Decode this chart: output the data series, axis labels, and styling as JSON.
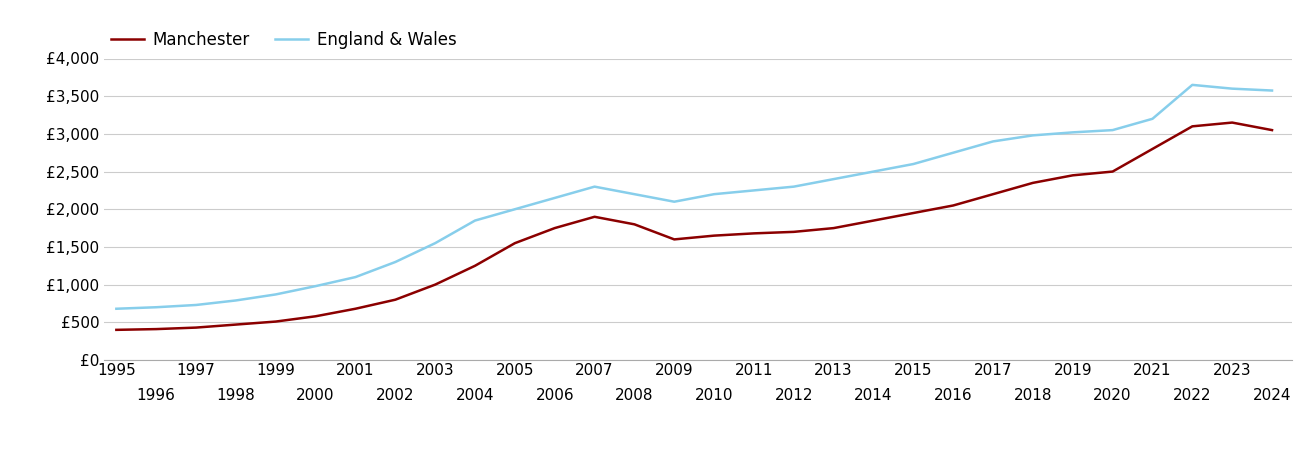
{
  "manchester": {
    "years": [
      1995,
      1996,
      1997,
      1998,
      1999,
      2000,
      2001,
      2002,
      2003,
      2004,
      2005,
      2006,
      2007,
      2008,
      2009,
      2010,
      2011,
      2012,
      2013,
      2014,
      2015,
      2016,
      2017,
      2018,
      2019,
      2020,
      2021,
      2022,
      2023,
      2024
    ],
    "values": [
      400,
      410,
      430,
      470,
      510,
      580,
      680,
      800,
      1000,
      1250,
      1550,
      1750,
      1900,
      1800,
      1600,
      1650,
      1680,
      1700,
      1750,
      1850,
      1950,
      2050,
      2200,
      2350,
      2450,
      2500,
      2800,
      3100,
      3150,
      3050
    ]
  },
  "england_wales": {
    "years": [
      1995,
      1996,
      1997,
      1998,
      1999,
      2000,
      2001,
      2002,
      2003,
      2004,
      2005,
      2006,
      2007,
      2008,
      2009,
      2010,
      2011,
      2012,
      2013,
      2014,
      2015,
      2016,
      2017,
      2018,
      2019,
      2020,
      2021,
      2022,
      2023,
      2024
    ],
    "values": [
      680,
      700,
      730,
      790,
      870,
      980,
      1100,
      1300,
      1550,
      1850,
      2000,
      2150,
      2300,
      2200,
      2100,
      2200,
      2250,
      2300,
      2400,
      2500,
      2600,
      2750,
      2900,
      2980,
      3020,
      3050,
      3200,
      3650,
      3600,
      3575
    ]
  },
  "manchester_color": "#8B0000",
  "england_wales_color": "#87CEEB",
  "manchester_label": "Manchester",
  "england_wales_label": "England & Wales",
  "ylim": [
    0,
    4000
  ],
  "yticks": [
    0,
    500,
    1000,
    1500,
    2000,
    2500,
    3000,
    3500,
    4000
  ],
  "ytick_labels": [
    "£0",
    "£500",
    "£1,000",
    "£1,500",
    "£2,000",
    "£2,500",
    "£3,000",
    "£3,500",
    "£4,000"
  ],
  "xlim_min": 1994.7,
  "xlim_max": 2024.5,
  "background_color": "#ffffff",
  "grid_color": "#cccccc",
  "line_width": 1.8,
  "legend_fontsize": 12,
  "tick_fontsize": 11
}
